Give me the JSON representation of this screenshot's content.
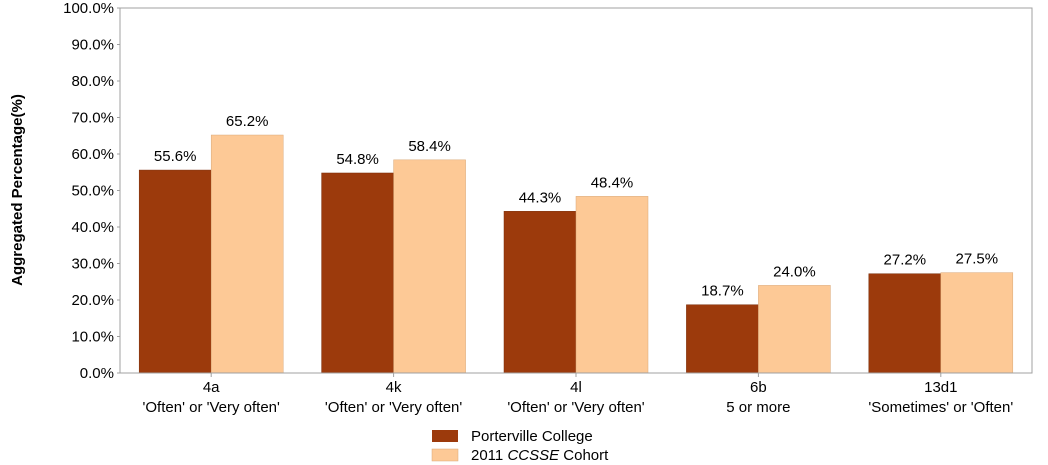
{
  "chart_data": {
    "type": "bar",
    "ylabel": "Aggregated Percentage(%)",
    "ylim": [
      0,
      100
    ],
    "y_ticks": [
      "0.0%",
      "10.0%",
      "20.0%",
      "30.0%",
      "40.0%",
      "50.0%",
      "60.0%",
      "70.0%",
      "80.0%",
      "90.0%",
      "100.0%"
    ],
    "categories": [
      {
        "code": "4a",
        "response": "'Often' or 'Very often'"
      },
      {
        "code": "4k",
        "response": "'Often' or 'Very often'"
      },
      {
        "code": "4l",
        "response": "'Often' or 'Very often'"
      },
      {
        "code": "6b",
        "response": "5 or more"
      },
      {
        "code": "13d1",
        "response": "'Sometimes' or 'Often'"
      }
    ],
    "series": [
      {
        "name": "Porterville College",
        "color": "#9c3a0c",
        "values": [
          55.6,
          54.8,
          44.3,
          18.7,
          27.2
        ],
        "labels": [
          "55.6%",
          "54.8%",
          "44.3%",
          "18.7%",
          "27.2%"
        ]
      },
      {
        "name_prefix": "2011 ",
        "name_italic": "CCSSE",
        "name_suffix": " Cohort",
        "color": "#fdc996",
        "values": [
          65.2,
          58.4,
          48.4,
          24.0,
          27.5
        ],
        "labels": [
          "65.2%",
          "58.4%",
          "48.4%",
          "24.0%",
          "27.5%"
        ]
      }
    ],
    "grid": false,
    "legend_position": "bottom"
  }
}
